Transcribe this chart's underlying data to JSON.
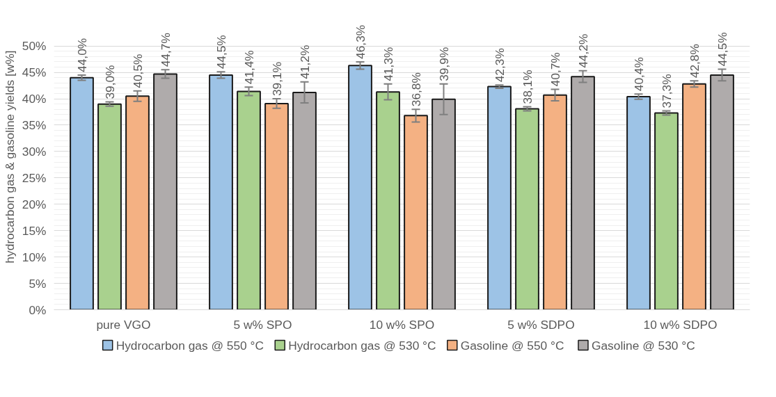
{
  "chart_data": {
    "type": "bar",
    "ylabel": "hydrocarbon gas & gasoline yields [w%]",
    "categories": [
      "pure VGO",
      "5 w% SPO",
      "10 w% SPO",
      "5 w% SDPO",
      "10 w% SDPO"
    ],
    "series": [
      {
        "name": "Hydrocarbon gas @ 550 °C",
        "color": "#9dc3e6",
        "values": [
          44.0,
          44.5,
          46.3,
          42.3,
          40.4
        ],
        "errors": [
          0.5,
          0.6,
          0.7,
          0.3,
          0.5
        ],
        "value_labels": [
          "44,0%",
          "44,5%",
          "46,3%",
          "42,3%",
          "40,4%"
        ]
      },
      {
        "name": "Hydrocarbon gas @ 530 °C",
        "color": "#a9d18e",
        "values": [
          39.0,
          41.4,
          41.3,
          38.1,
          37.3
        ],
        "errors": [
          0.4,
          0.8,
          1.5,
          0.4,
          0.4
        ],
        "value_labels": [
          "39,0%",
          "41,4%",
          "41,3%",
          "38,1%",
          "37,3%"
        ]
      },
      {
        "name": "Gasoline @ 550 °C",
        "color": "#f4b183",
        "values": [
          40.5,
          39.1,
          36.8,
          40.7,
          42.8
        ],
        "errors": [
          1.0,
          0.9,
          1.2,
          1.1,
          0.6
        ],
        "value_labels": [
          "40,5%",
          "39,1%",
          "36,8%",
          "40,7%",
          "42,8%"
        ]
      },
      {
        "name": "Gasoline @ 530 °C",
        "color": "#afabab",
        "values": [
          44.7,
          41.2,
          39.9,
          44.2,
          44.5
        ],
        "errors": [
          0.8,
          2.0,
          2.9,
          1.1,
          1.1
        ],
        "value_labels": [
          "44,7%",
          "41,2%",
          "39,9%",
          "44,2%",
          "44,5%"
        ]
      }
    ],
    "ylim": [
      0,
      50
    ],
    "yticks": [
      {
        "value": 0,
        "label": "0%"
      },
      {
        "value": 5,
        "label": "5%"
      },
      {
        "value": 10,
        "label": "10%"
      },
      {
        "value": 15,
        "label": "15%"
      },
      {
        "value": 20,
        "label": "20%"
      },
      {
        "value": 25,
        "label": "25%"
      },
      {
        "value": 30,
        "label": "30%"
      },
      {
        "value": 35,
        "label": "35%"
      },
      {
        "value": 40,
        "label": "40%"
      },
      {
        "value": 45,
        "label": "45%"
      },
      {
        "value": 50,
        "label": "50%"
      }
    ],
    "grid": "y",
    "legend": "bottom"
  }
}
